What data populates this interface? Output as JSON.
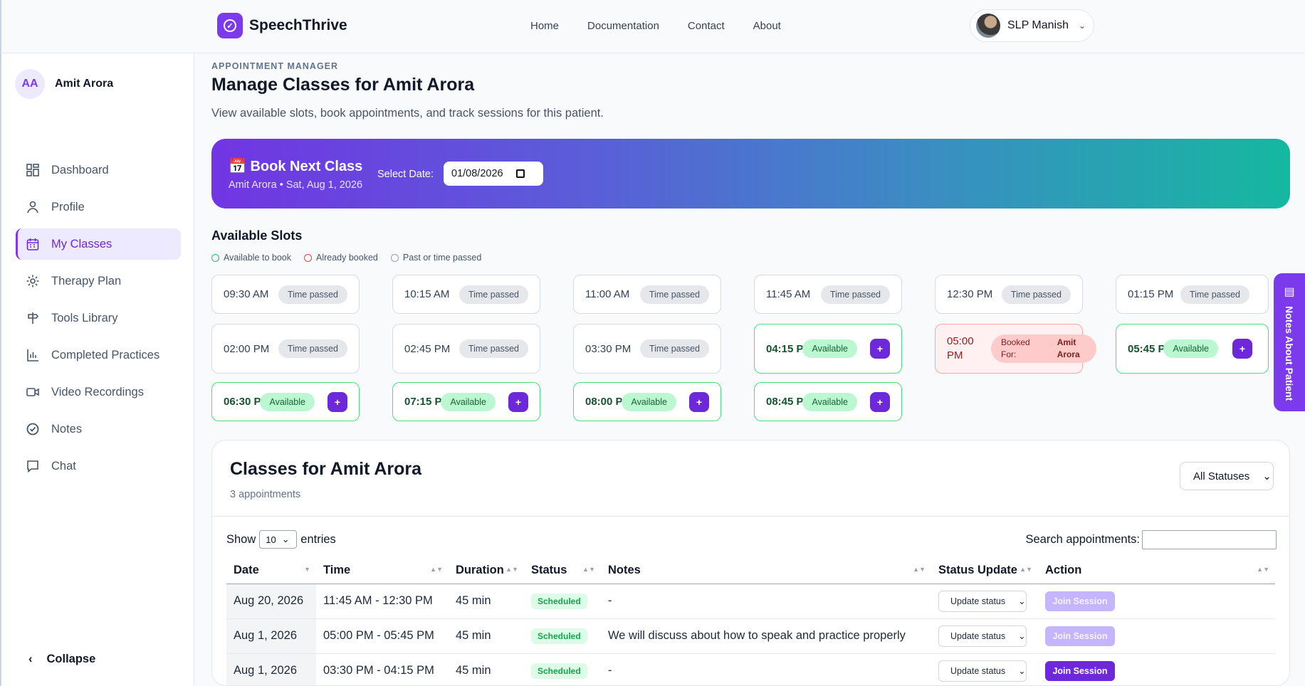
{
  "app": {
    "name": "SpeechThrive"
  },
  "nav": [
    "Home",
    "Documentation",
    "Contact",
    "About"
  ],
  "user_menu": {
    "name": "SLP Manish"
  },
  "sidebar": {
    "patient_initials": "AA",
    "patient_name": "Amit Arora",
    "items": [
      {
        "label": "Dashboard",
        "icon": "dashboard-icon"
      },
      {
        "label": "Profile",
        "icon": "user-icon"
      },
      {
        "label": "My Classes",
        "icon": "calendar-icon",
        "active": true
      },
      {
        "label": "Therapy Plan",
        "icon": "sun-icon"
      },
      {
        "label": "Tools Library",
        "icon": "signpost-icon"
      },
      {
        "label": "Completed Practices",
        "icon": "bar-chart-icon"
      },
      {
        "label": "Video Recordings",
        "icon": "video-icon"
      },
      {
        "label": "Notes",
        "icon": "check-circle-icon"
      },
      {
        "label": "Chat",
        "icon": "chat-icon"
      }
    ],
    "collapse_label": "Collapse"
  },
  "header": {
    "eyebrow": "APPOINTMENT MANAGER",
    "title": "Manage Classes for Amit Arora",
    "subtitle": "View available slots, book appointments, and track sessions for this patient."
  },
  "booking": {
    "emoji": "📅",
    "title": "Book Next Class",
    "subtitle": "Amit Arora • Sat, Aug 1, 2026",
    "date_label": "Select Date:",
    "date_value": "01/08/2026"
  },
  "slots": {
    "heading": "Available Slots",
    "legend": [
      "Available to book",
      "Already booked",
      "Past or time passed"
    ],
    "items": [
      {
        "time": "09:30 AM",
        "status": "Time passed"
      },
      {
        "time": "10:15 AM",
        "status": "Time passed"
      },
      {
        "time": "11:00 AM",
        "status": "Time passed"
      },
      {
        "time": "11:45 AM",
        "status": "Time passed"
      },
      {
        "time": "12:30 PM",
        "status": "Time passed"
      },
      {
        "time": "01:15 PM",
        "status": "Time passed"
      },
      {
        "time": "02:00 PM",
        "status": "Time passed"
      },
      {
        "time": "02:45 PM",
        "status": "Time passed"
      },
      {
        "time": "03:30 PM",
        "status": "Time passed"
      },
      {
        "time": "04:15 PM",
        "status": "Available"
      },
      {
        "time": "05:00 PM",
        "status": "Booked For:",
        "booked_for": "Amit Arora"
      },
      {
        "time": "05:45 PM",
        "status": "Available"
      },
      {
        "time": "06:30 PM",
        "status": "Available"
      },
      {
        "time": "07:15 PM",
        "status": "Available"
      },
      {
        "time": "08:00 PM",
        "status": "Available"
      },
      {
        "time": "08:45 PM",
        "status": "Available"
      }
    ],
    "add_label": "+"
  },
  "notes_tab": {
    "label": "Notes About Patient"
  },
  "classes": {
    "title": "Classes for Amit Arora",
    "count": "3 appointments",
    "filter": "All Statuses",
    "show_label": "Show",
    "entries_value": "10",
    "entries_label": "entries",
    "search_label": "Search appointments:",
    "columns": [
      "Date",
      "Time",
      "Duration",
      "Status",
      "Notes",
      "Status Update",
      "Action"
    ],
    "rows": [
      {
        "date": "Aug 20, 2026",
        "time": "11:45 AM - 12:30 PM",
        "duration": "45 min",
        "status": "Scheduled",
        "notes": "-",
        "update": "Update status",
        "action": "Join Session",
        "enabled": false
      },
      {
        "date": "Aug 1, 2026",
        "time": "05:00 PM - 05:45 PM",
        "duration": "45 min",
        "status": "Scheduled",
        "notes": "We will discuss about how to speak and practice properly",
        "update": "Update status",
        "action": "Join Session",
        "enabled": false
      },
      {
        "date": "Aug 1, 2026",
        "time": "03:30 PM - 04:15 PM",
        "duration": "45 min",
        "status": "Scheduled",
        "notes": "-",
        "update": "Update status",
        "action": "Join Session",
        "enabled": true
      }
    ]
  },
  "colors": {
    "accent": "#7c3aed",
    "available": "#22c55e",
    "booked": "#ef4444",
    "passed": "#94a3b8"
  }
}
